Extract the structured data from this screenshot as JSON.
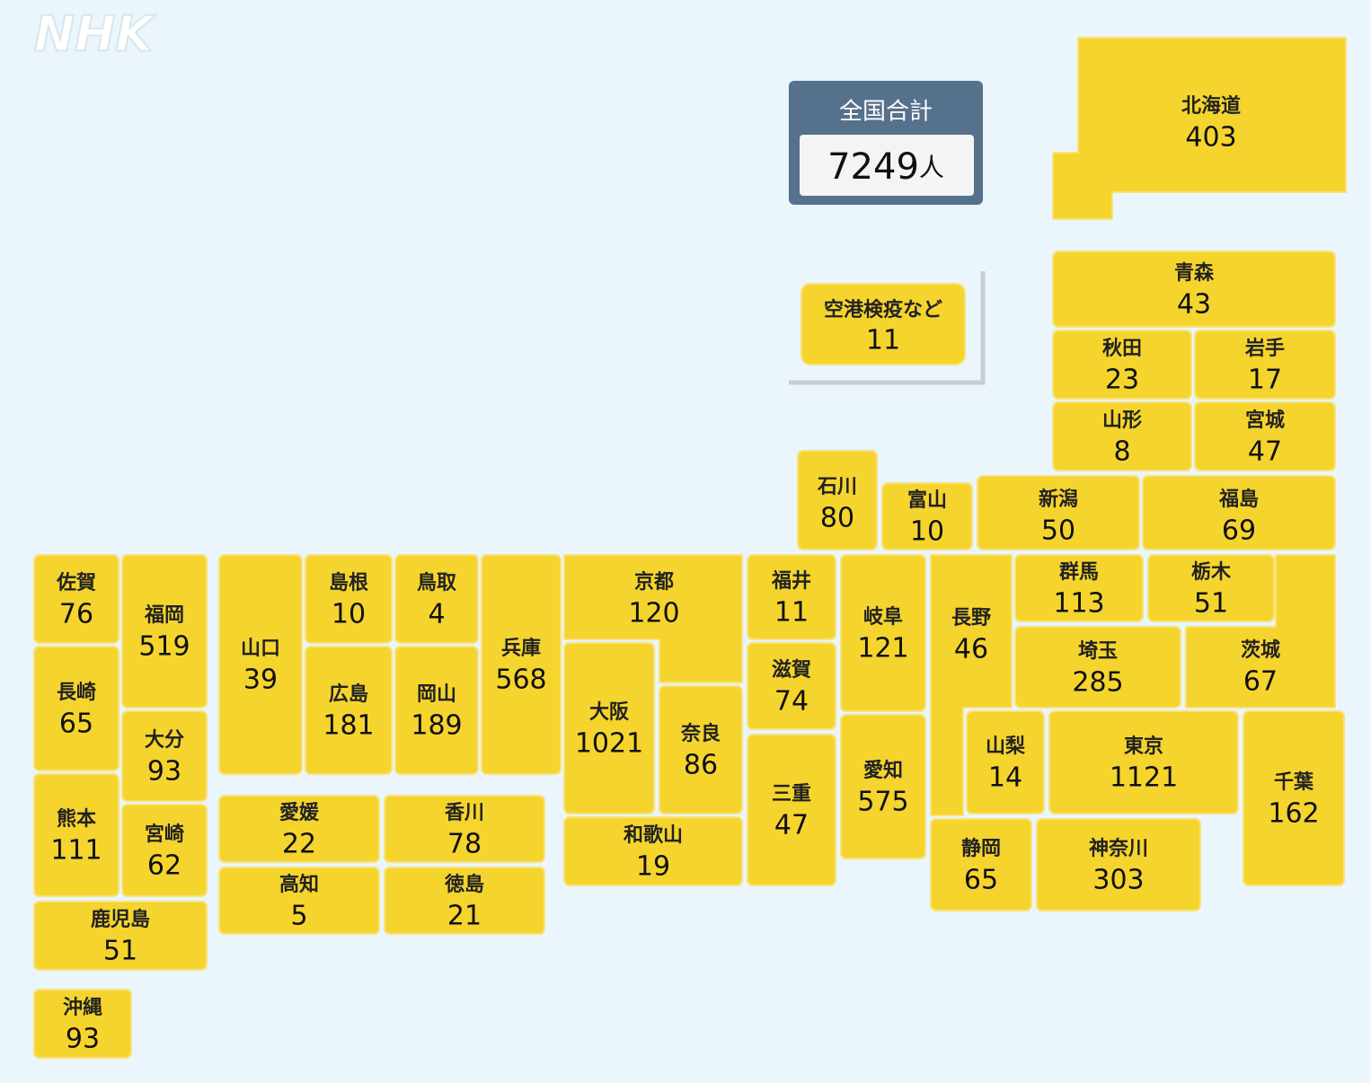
{
  "logo": "NHK",
  "total": {
    "label": "全国合計",
    "value": 7249,
    "unit": "人"
  },
  "airport": {
    "name": "空港検疫など",
    "value": 11
  },
  "prefectures": [
    {
      "name": "北海道",
      "value": 403
    },
    {
      "name": "青森",
      "value": 43
    },
    {
      "name": "秋田",
      "value": 23
    },
    {
      "name": "岩手",
      "value": 17
    },
    {
      "name": "山形",
      "value": 8
    },
    {
      "name": "宮城",
      "value": 47
    },
    {
      "name": "石川",
      "value": 80
    },
    {
      "name": "富山",
      "value": 10
    },
    {
      "name": "新潟",
      "value": 50
    },
    {
      "name": "福島",
      "value": 69
    },
    {
      "name": "群馬",
      "value": 113
    },
    {
      "name": "栃木",
      "value": 51
    },
    {
      "name": "埼玉",
      "value": 285
    },
    {
      "name": "茨城",
      "value": 67
    },
    {
      "name": "長野",
      "value": 46
    },
    {
      "name": "山梨",
      "value": 14
    },
    {
      "name": "東京",
      "value": 1121
    },
    {
      "name": "千葉",
      "value": 162
    },
    {
      "name": "静岡",
      "value": 65
    },
    {
      "name": "神奈川",
      "value": 303
    },
    {
      "name": "岐阜",
      "value": 121
    },
    {
      "name": "愛知",
      "value": 575
    },
    {
      "name": "福井",
      "value": 11
    },
    {
      "name": "滋賀",
      "value": 74
    },
    {
      "name": "三重",
      "value": 47
    },
    {
      "name": "京都",
      "value": 120
    },
    {
      "name": "大阪",
      "value": 1021
    },
    {
      "name": "奈良",
      "value": 86
    },
    {
      "name": "和歌山",
      "value": 19
    },
    {
      "name": "兵庫",
      "value": 568
    },
    {
      "name": "鳥取",
      "value": 4
    },
    {
      "name": "島根",
      "value": 10
    },
    {
      "name": "岡山",
      "value": 189
    },
    {
      "name": "広島",
      "value": 181
    },
    {
      "name": "山口",
      "value": 39
    },
    {
      "name": "愛媛",
      "value": 22
    },
    {
      "name": "香川",
      "value": 78
    },
    {
      "name": "高知",
      "value": 5
    },
    {
      "name": "徳島",
      "value": 21
    },
    {
      "name": "佐賀",
      "value": 76
    },
    {
      "name": "福岡",
      "value": 519
    },
    {
      "name": "長崎",
      "value": 65
    },
    {
      "name": "大分",
      "value": 93
    },
    {
      "name": "熊本",
      "value": 111
    },
    {
      "name": "宮崎",
      "value": 62
    },
    {
      "name": "鹿児島",
      "value": 51
    },
    {
      "name": "沖縄",
      "value": 93
    }
  ]
}
